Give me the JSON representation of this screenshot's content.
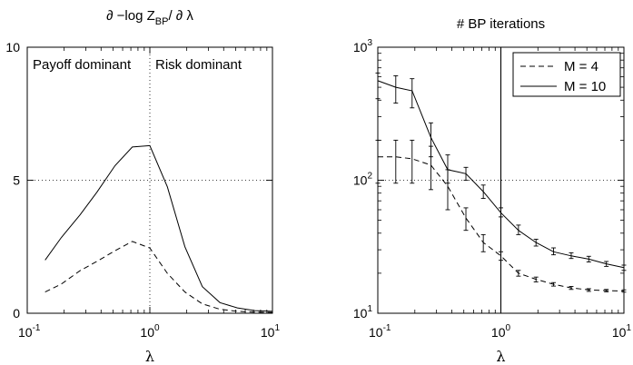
{
  "chart_data": [
    {
      "type": "line",
      "title": "∂ −log Z_BP / ∂ λ",
      "title_main": "∂ −log Z",
      "title_sub": "BP",
      "title_tail": "/ ∂ λ",
      "xlabel": "λ",
      "ylabel": "",
      "xscale": "log",
      "xlim": [
        0.1,
        10
      ],
      "ylim": [
        0,
        10
      ],
      "xticks": [
        0.1,
        1,
        10
      ],
      "xtick_labels": [
        {
          "base": "10",
          "exp": "-1"
        },
        {
          "base": "10",
          "exp": "0"
        },
        {
          "base": "10",
          "exp": "1"
        }
      ],
      "yticks": [
        0,
        5,
        10
      ],
      "ytick_labels": [
        "0",
        "5",
        "10"
      ],
      "annotations": [
        "Payoff dominant",
        "Risk dominant"
      ],
      "vline_x": 1,
      "hline_y": 5,
      "series": [
        {
          "style": "solid",
          "x": [
            0.14,
            0.19,
            0.27,
            0.37,
            0.52,
            0.72,
            1.0,
            1.39,
            1.93,
            2.68,
            3.73,
            5.18,
            7.2,
            10.0
          ],
          "y": [
            2.0,
            2.85,
            3.7,
            4.55,
            5.55,
            6.25,
            6.3,
            4.75,
            2.5,
            1.0,
            0.4,
            0.2,
            0.1,
            0.07
          ]
        },
        {
          "style": "dashed",
          "x": [
            0.14,
            0.19,
            0.27,
            0.37,
            0.52,
            0.72,
            1.0,
            1.39,
            1.93,
            2.68,
            3.73,
            5.18,
            7.2,
            10.0
          ],
          "y": [
            0.8,
            1.1,
            1.6,
            1.95,
            2.35,
            2.7,
            2.45,
            1.5,
            0.8,
            0.35,
            0.15,
            0.07,
            0.04,
            0.03
          ]
        }
      ]
    },
    {
      "type": "line",
      "title": "# BP iterations",
      "xlabel": "λ",
      "ylabel": "",
      "xscale": "log",
      "yscale": "log",
      "xlim": [
        0.1,
        10
      ],
      "ylim": [
        10,
        1000
      ],
      "xticks": [
        0.1,
        1,
        10
      ],
      "xtick_labels": [
        {
          "base": "10",
          "exp": "-1"
        },
        {
          "base": "10",
          "exp": "0"
        },
        {
          "base": "10",
          "exp": "1"
        }
      ],
      "yticks": [
        10,
        100,
        1000
      ],
      "ytick_labels": [
        {
          "base": "10",
          "exp": "1"
        },
        {
          "base": "10",
          "exp": "2"
        },
        {
          "base": "10",
          "exp": "3"
        }
      ],
      "vline_x": 1,
      "hline_y": 100,
      "legend_position": "top-right",
      "series": [
        {
          "name": "M = 4",
          "style": "dashed",
          "x": [
            0.1,
            0.14,
            0.19,
            0.27,
            0.37,
            0.52,
            0.72,
            1.0,
            1.39,
            1.93,
            2.68,
            3.73,
            5.18,
            7.2,
            10.0
          ],
          "y": [
            150,
            150,
            145,
            130,
            90,
            52,
            34,
            27,
            20,
            18,
            16.5,
            15.5,
            15,
            14.8,
            14.7
          ],
          "err_low": [
            95,
            95,
            95,
            85,
            60,
            42,
            29,
            25,
            19,
            17.2,
            16,
            15.1,
            14.6,
            14.5,
            14.4
          ],
          "err_high": [
            200,
            200,
            200,
            180,
            120,
            62,
            39,
            29,
            21,
            18.7,
            17,
            15.9,
            15.3,
            15.1,
            15
          ]
        },
        {
          "name": "M = 10",
          "style": "solid",
          "x": [
            0.1,
            0.14,
            0.19,
            0.27,
            0.37,
            0.52,
            0.72,
            1.0,
            1.39,
            1.93,
            2.68,
            3.73,
            5.18,
            7.2,
            10.0
          ],
          "y": [
            560,
            500,
            470,
            210,
            120,
            112,
            82,
            57,
            42,
            34,
            29,
            27,
            25.5,
            23.5,
            22
          ],
          "err_low": [
            410,
            380,
            350,
            150,
            95,
            100,
            73,
            53,
            39,
            32,
            27.5,
            25.8,
            24.3,
            22.5,
            21
          ],
          "err_high": [
            640,
            610,
            580,
            270,
            155,
            125,
            92,
            62,
            46,
            36,
            31,
            28.5,
            26.8,
            24.5,
            23
          ]
        }
      ]
    }
  ]
}
